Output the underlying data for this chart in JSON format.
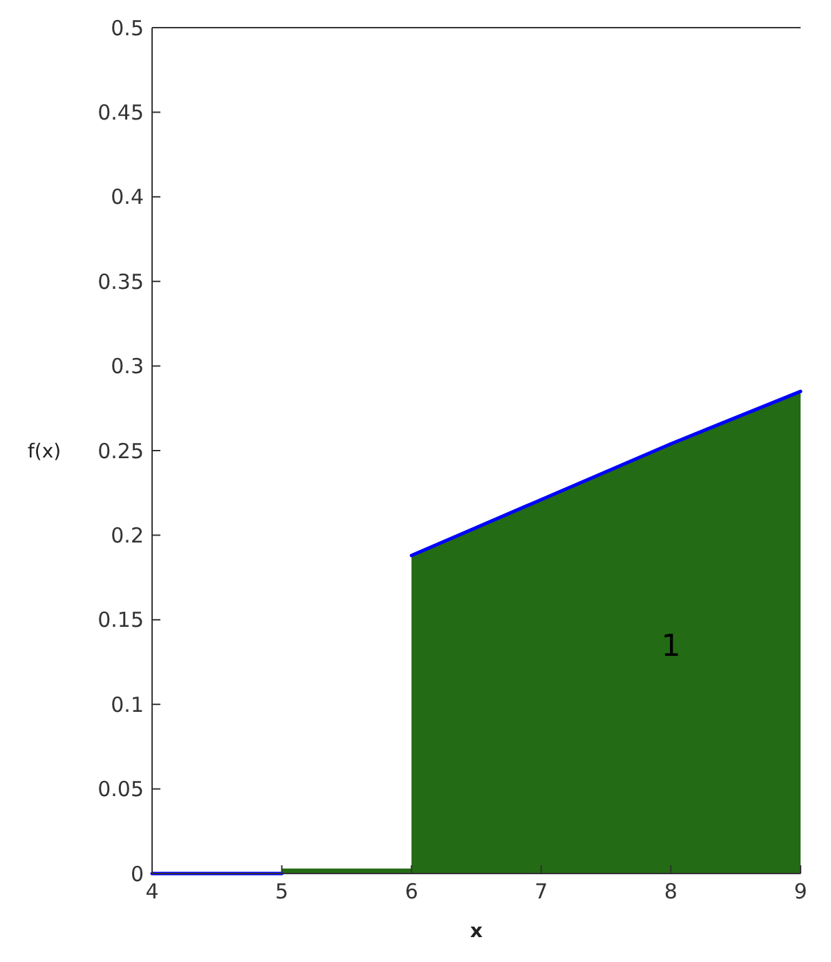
{
  "chart_data": {
    "type": "area",
    "xlabel": "x",
    "ylabel": "f(x)",
    "xlim": [
      4,
      9
    ],
    "xticks": [
      4,
      5,
      6,
      7,
      8,
      9
    ],
    "ylim": [
      0,
      0.5
    ],
    "yticks": [
      0,
      0.05,
      0.1,
      0.15,
      0.2,
      0.25,
      0.3,
      0.35,
      0.4,
      0.45,
      0.5
    ],
    "series": [
      {
        "color": "#236b14",
        "x": [
          5,
          6,
          6,
          7,
          8,
          9
        ],
        "values": [
          0.003,
          0.003,
          0.188,
          0.221,
          0.254,
          0.285
        ]
      },
      {
        "type": "line",
        "color": "#0000ff",
        "x": [
          4,
          5
        ],
        "values": [
          0,
          0
        ]
      },
      {
        "type": "line",
        "color": "#0000ff",
        "x": [
          6,
          7,
          8,
          9
        ],
        "values": [
          0.188,
          0.221,
          0.254,
          0.285
        ]
      }
    ],
    "annotations": [
      "1"
    ],
    "grid": false
  }
}
